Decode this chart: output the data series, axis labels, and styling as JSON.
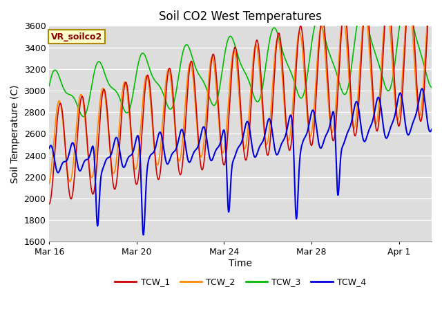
{
  "title": "Soil CO2 West Temperatures",
  "xlabel": "Time",
  "ylabel": "Soil Temperature (C)",
  "ylim": [
    1600,
    3600
  ],
  "yticks": [
    1600,
    1800,
    2000,
    2200,
    2400,
    2600,
    2800,
    3000,
    3200,
    3400,
    3600
  ],
  "xtick_labels": [
    "Mar 16",
    "Mar 20",
    "Mar 24",
    "Mar 28",
    "Apr 1"
  ],
  "xtick_days": [
    0,
    4,
    8,
    12,
    16
  ],
  "series_colors": [
    "#cc0000",
    "#ff8800",
    "#00bb00",
    "#0000dd"
  ],
  "series_names": [
    "TCW_1",
    "TCW_2",
    "TCW_3",
    "TCW_4"
  ],
  "annotation_text": "VR_soilco2",
  "annotation_color": "#8B0000",
  "annotation_bg": "#ffffcc",
  "bg_color": "#dddddd",
  "line_width": 1.2,
  "title_fontsize": 12,
  "label_fontsize": 10,
  "tick_fontsize": 9
}
